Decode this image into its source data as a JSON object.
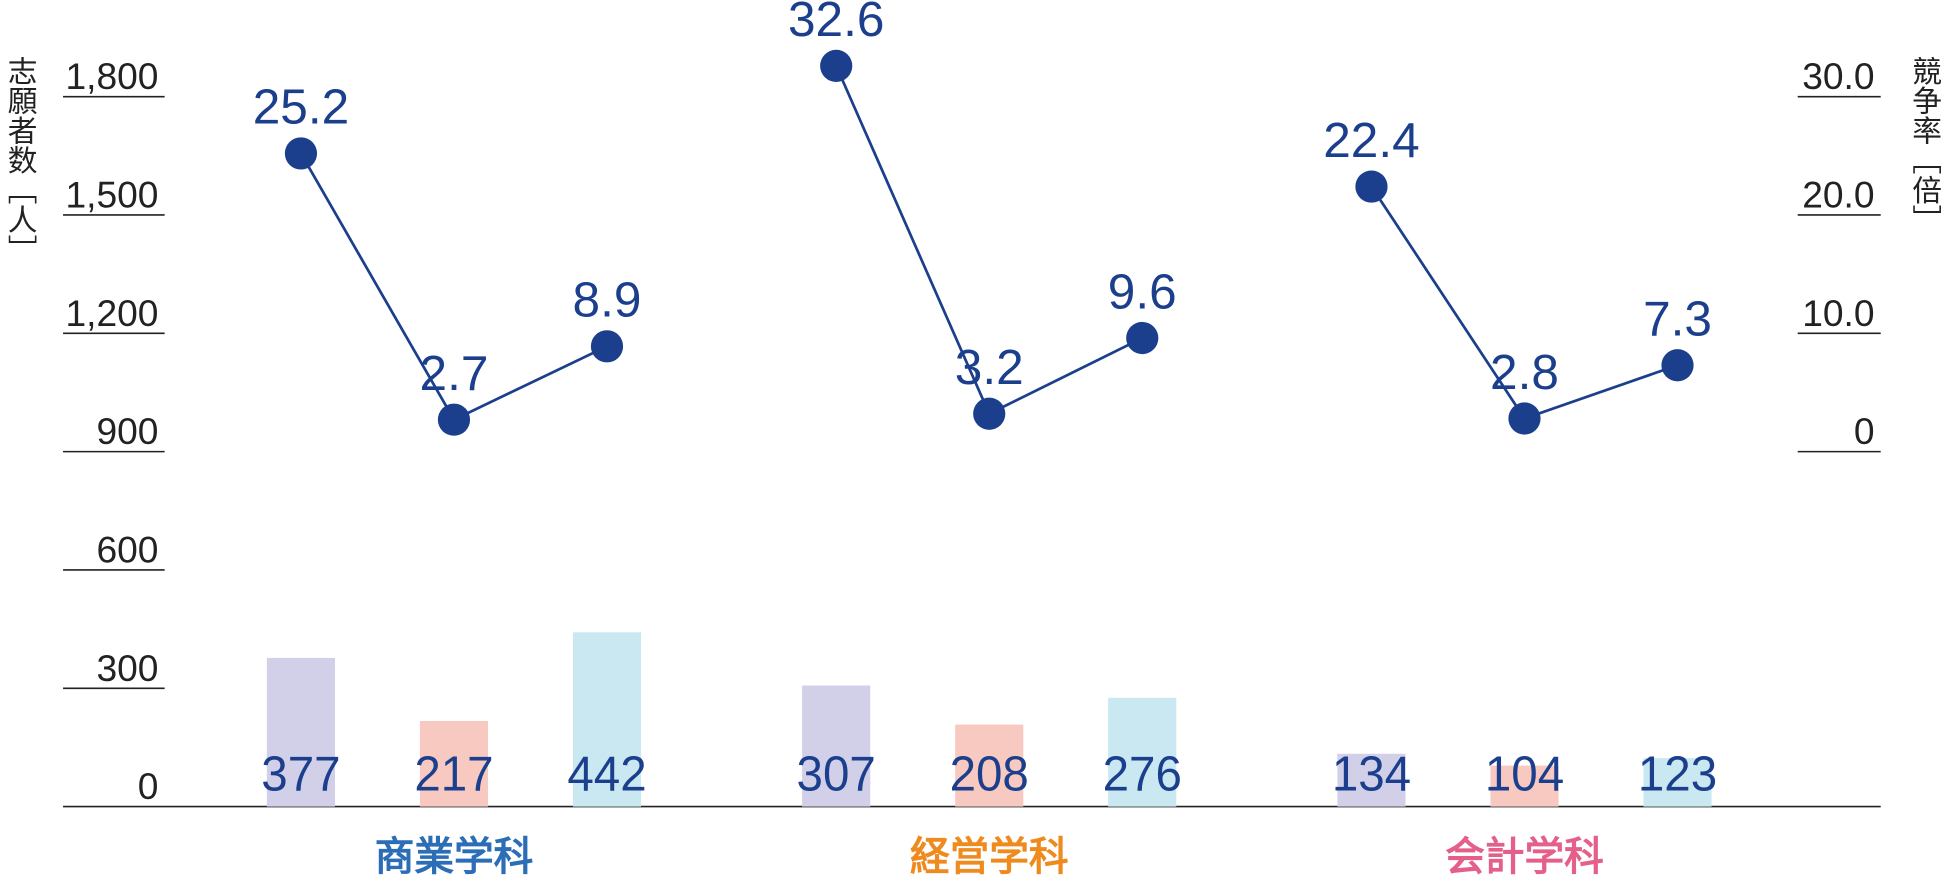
{
  "chart_data": {
    "type": "combo",
    "y_label": "志願者数［人］",
    "y2_label": "競争率［倍］",
    "ylim": [
      0,
      1800
    ],
    "yticks": [
      0,
      300,
      600,
      900,
      {
        "value": 1200,
        "label": "1,200"
      },
      {
        "value": 1500,
        "label": "1,500"
      },
      {
        "value": 1800,
        "label": "1,800"
      }
    ],
    "y2lim": [
      -30,
      30
    ],
    "y2ticks": [
      0,
      {
        "value": 10,
        "label": "10.0"
      },
      {
        "value": 20,
        "label": "20.0"
      },
      {
        "value": 30,
        "label": "30.0"
      }
    ],
    "bar_colors": [
      "#d2cfe8",
      "#f7c9c0",
      "#c9e8f1"
    ],
    "line_color": "#1b3f8c",
    "groups": [
      {
        "label": "商業学科",
        "color": "#2b6db6",
        "bars": [
          377,
          217,
          442
        ],
        "rates": [
          25.2,
          2.7,
          8.9
        ]
      },
      {
        "label": "経営学科",
        "color": "#ef8a1f",
        "bars": [
          307,
          208,
          276
        ],
        "rates": [
          32.6,
          3.2,
          9.6
        ]
      },
      {
        "label": "会計学科",
        "color": "#e4608b",
        "bars": [
          134,
          104,
          123
        ],
        "rates": [
          22.4,
          2.8,
          7.3
        ]
      }
    ]
  }
}
